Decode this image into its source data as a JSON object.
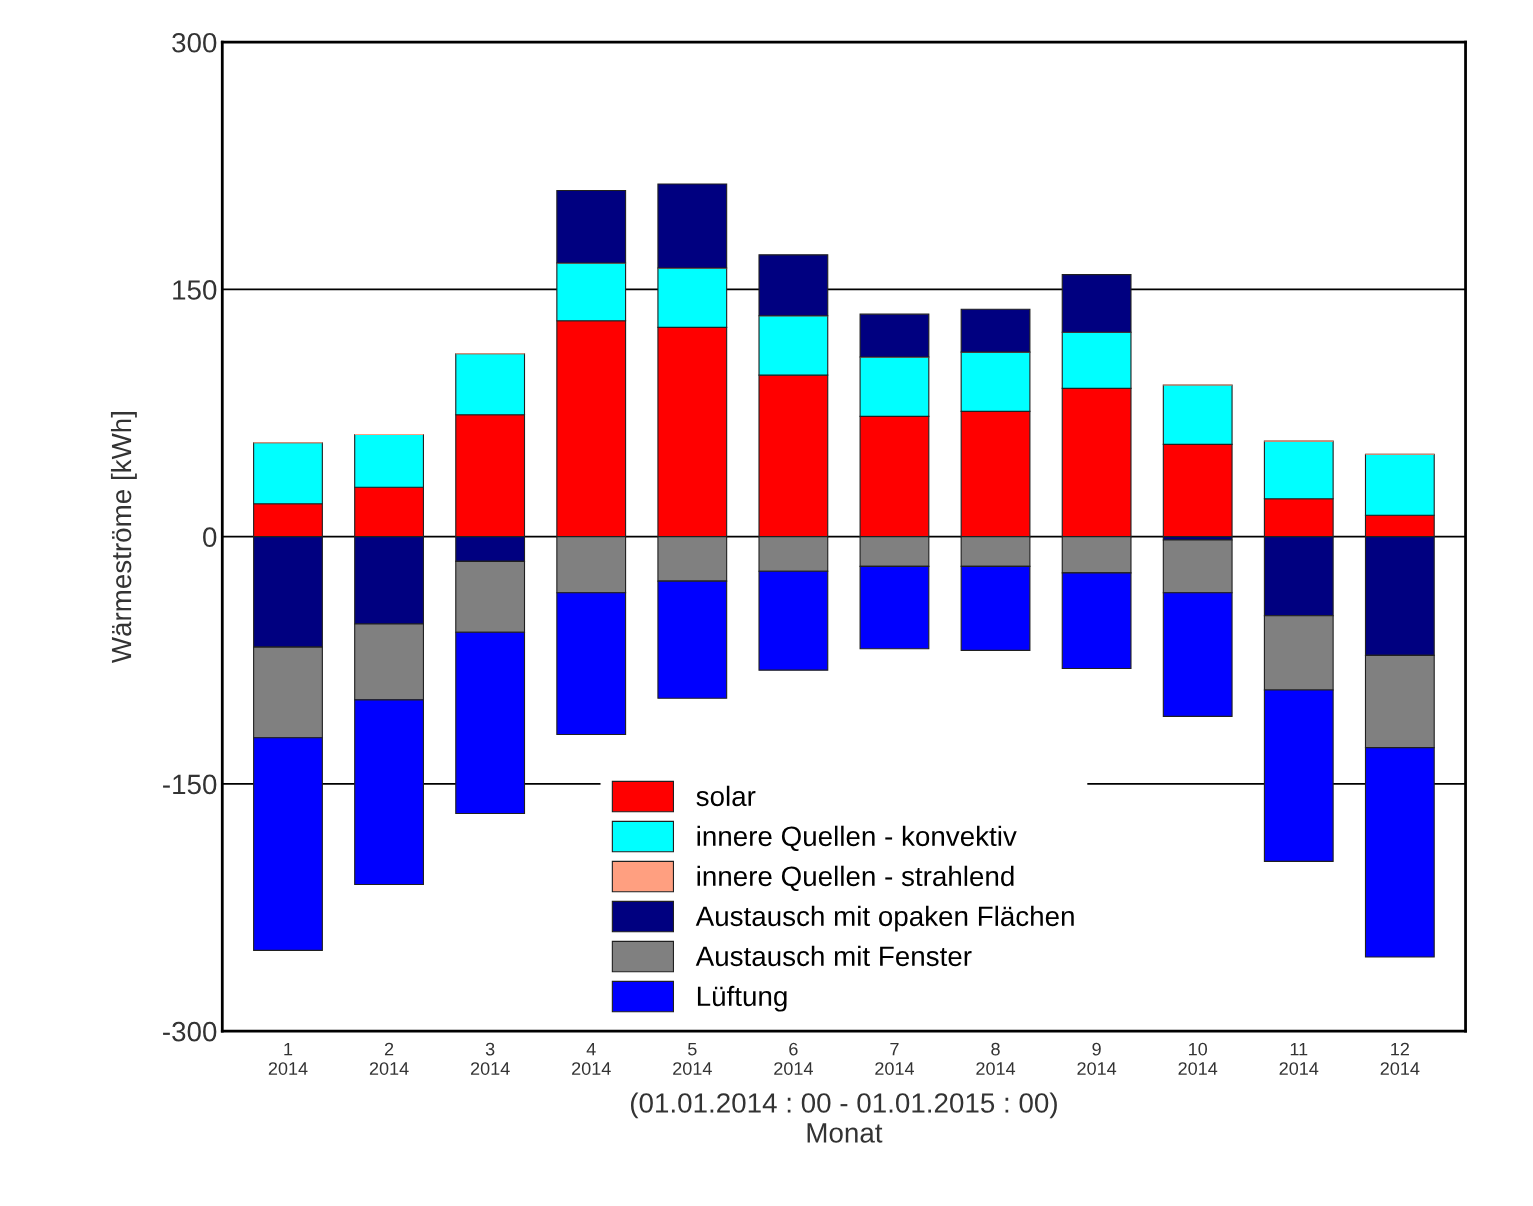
{
  "chart_data": {
    "type": "bar",
    "stacked": true,
    "ylabel": "Wärmeströme [kWh]",
    "xlabel": "(01.01.2014 : 00 - 01.01.2015 : 00)\nMonat",
    "categories": [
      "1\n2014",
      "2\n2014",
      "3\n2014",
      "4\n2014",
      "5\n2014",
      "6\n2014",
      "7\n2014",
      "8\n2014",
      "9\n2014",
      "10\n2014",
      "11\n2014",
      "12\n2014"
    ],
    "series": [
      {
        "name": "solar",
        "color": "#ff0000",
        "values": [
          20,
          30,
          74,
          131,
          127,
          98,
          73,
          76,
          90,
          56,
          23,
          13
        ]
      },
      {
        "name": "innere Quellen - konvektiv",
        "color": "#00ffff",
        "values": [
          37,
          32,
          37,
          35,
          36,
          36,
          36,
          36,
          34,
          36,
          35,
          37
        ]
      },
      {
        "name": "innere Quellen - strahlend",
        "color": "#ff9f80",
        "values": [
          0,
          0,
          0,
          0,
          0,
          0,
          0,
          0,
          0,
          0,
          0,
          0
        ]
      },
      {
        "name": "Austausch mit opaken Flächen",
        "color": "#000080",
        "values": [
          -67,
          -53,
          -15,
          44,
          51,
          37,
          26,
          26,
          35,
          -2,
          -48,
          -72
        ]
      },
      {
        "name": "Austausch mit Fenster",
        "color": "#808080",
        "values": [
          -55,
          -46,
          -43,
          -34,
          -27,
          -21,
          -18,
          -18,
          -22,
          -32,
          -45,
          -56
        ]
      },
      {
        "name": "Lüftung",
        "color": "#0000ff",
        "values": [
          -129,
          -112,
          -110,
          -86,
          -71,
          -60,
          -50,
          -51,
          -58,
          -75,
          -104,
          -127
        ]
      }
    ],
    "ylim": [
      -300,
      300
    ],
    "yticks": [
      -300,
      -150,
      0,
      150,
      300
    ],
    "grid": "y",
    "legend": "bottom"
  }
}
